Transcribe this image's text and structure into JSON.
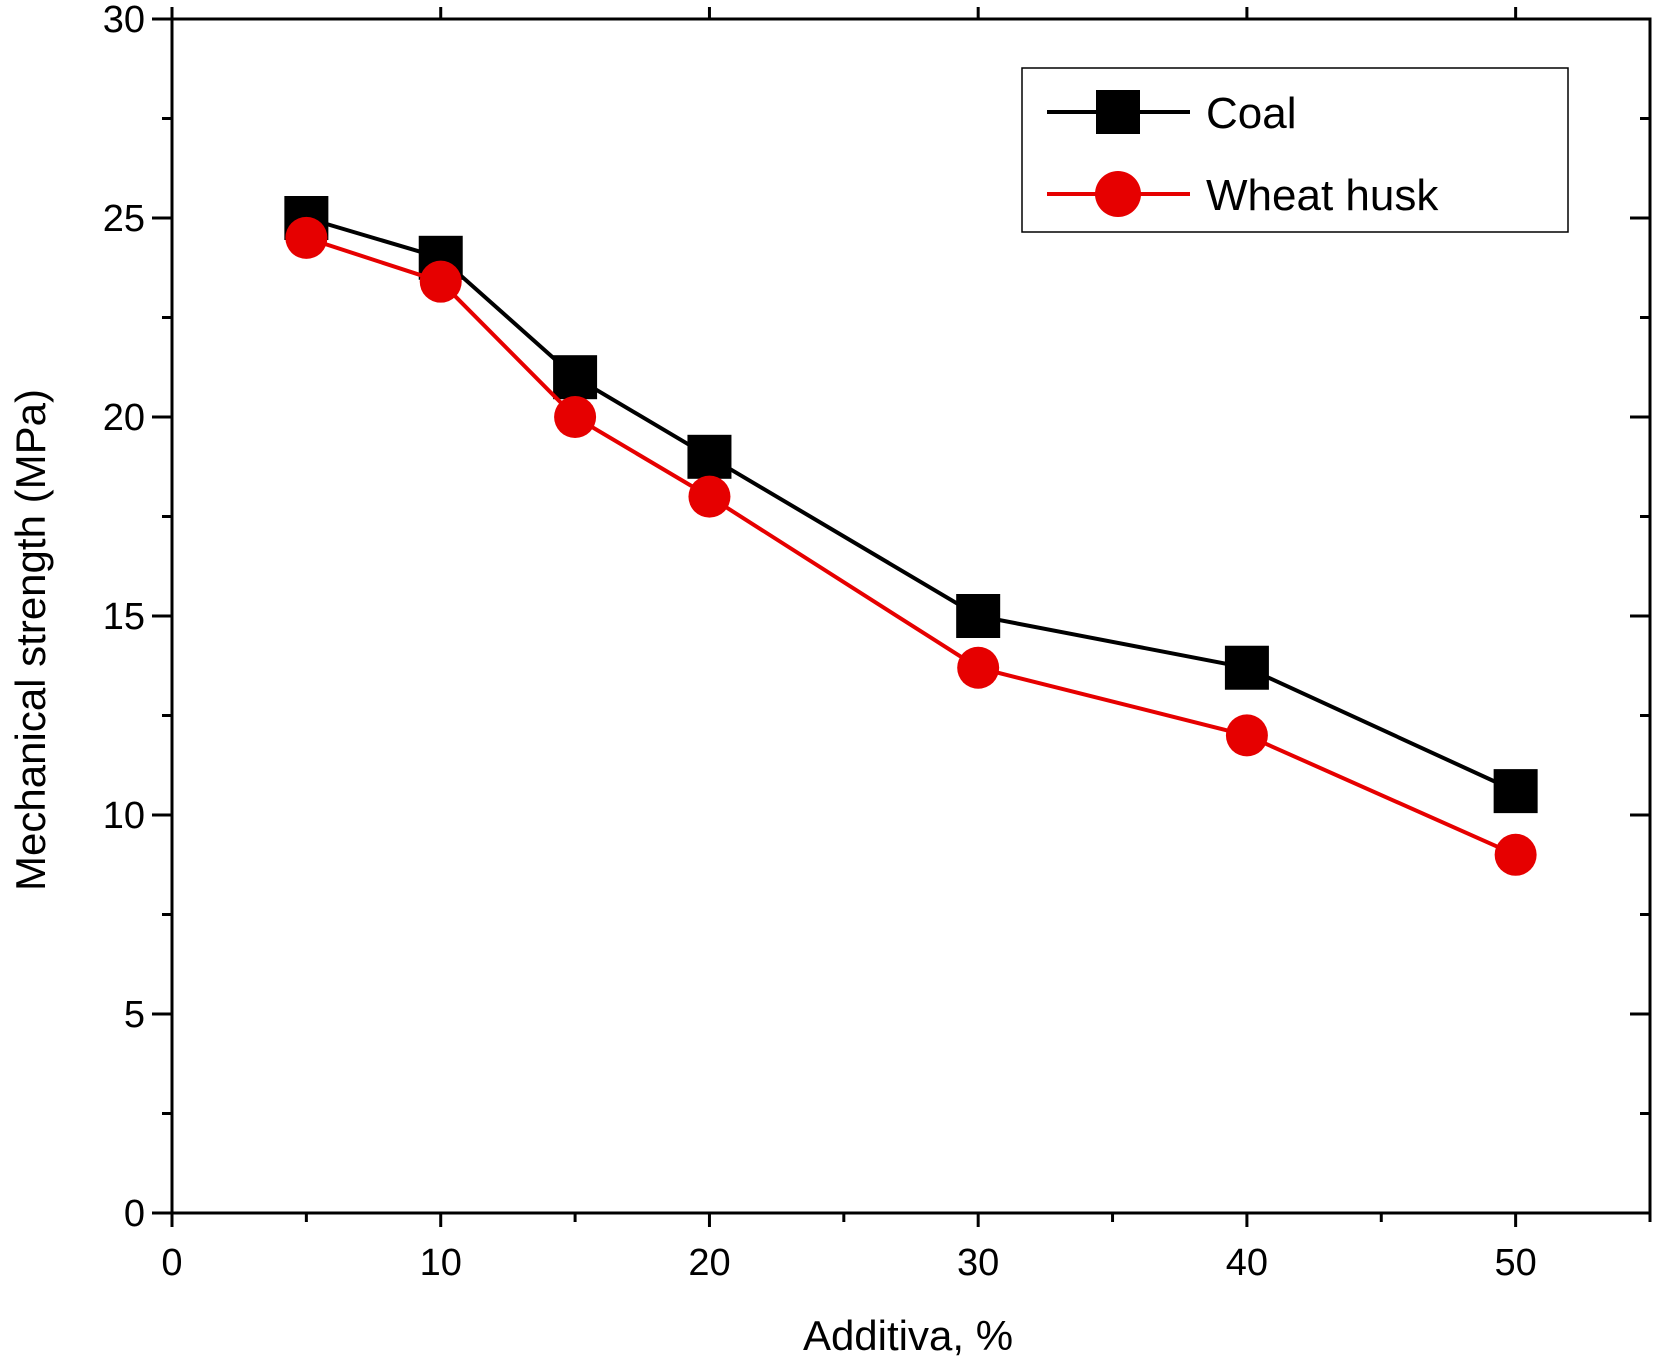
{
  "chart_data": {
    "type": "line",
    "title": "",
    "xlabel": "Additiva, %",
    "ylabel": "Mechanical strength (MPa)",
    "xlim": [
      0,
      55
    ],
    "ylim": [
      0,
      30
    ],
    "x_ticks": [
      "0",
      "10",
      "20",
      "30",
      "40",
      "50"
    ],
    "y_ticks": [
      "0",
      "5",
      "10",
      "15",
      "20",
      "25",
      "30"
    ],
    "grid": false,
    "legend_position": "top-right",
    "x": [
      5,
      10,
      15,
      20,
      30,
      40,
      50
    ],
    "series": [
      {
        "name": "Coal",
        "values": [
          25,
          24,
          21,
          19,
          15,
          13.7,
          10.6
        ],
        "color": "#000000",
        "marker": "square"
      },
      {
        "name": "Wheat husk",
        "values": [
          24.5,
          23.4,
          20,
          18,
          13.7,
          12,
          9
        ],
        "color": "#e60000",
        "marker": "circle"
      }
    ]
  }
}
